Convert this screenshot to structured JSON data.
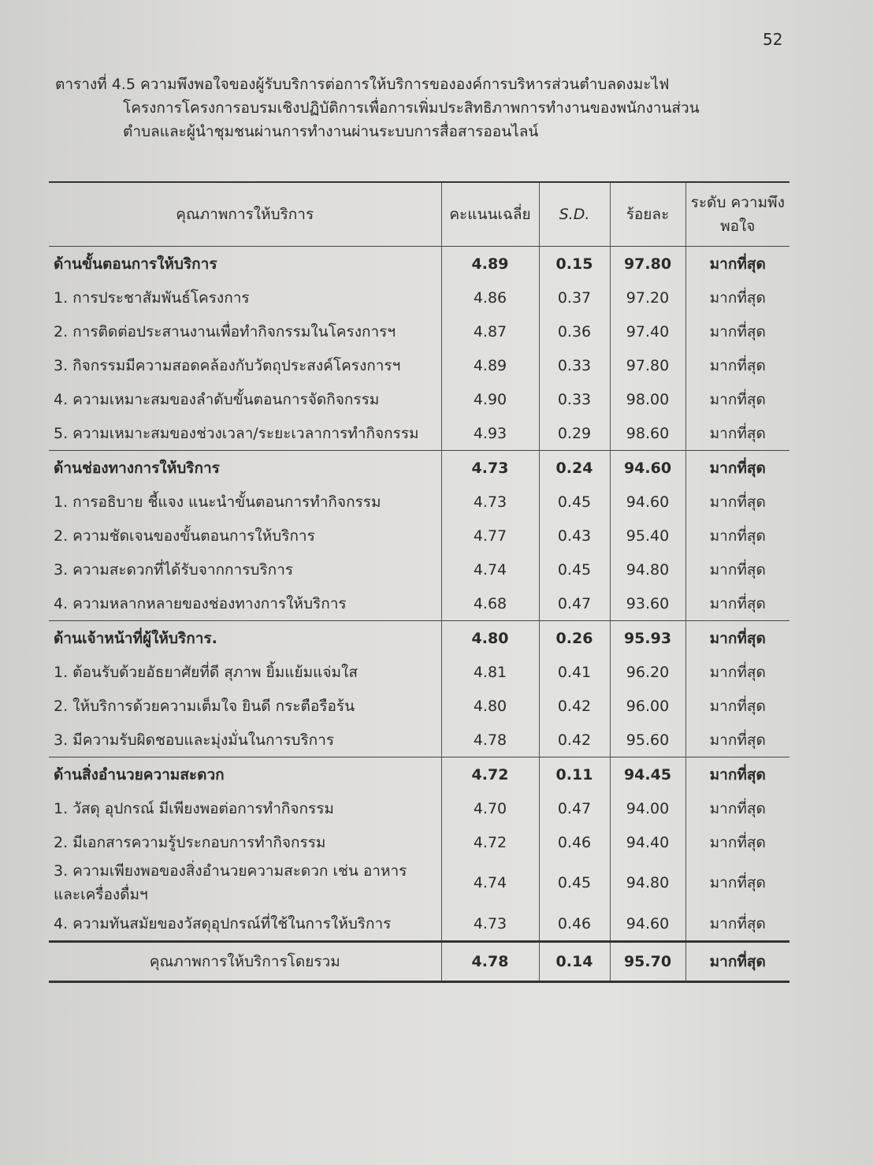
{
  "page_number": "52",
  "caption": {
    "label": "ตารางที่ 4.5",
    "line1": "ความพึงพอใจของผู้รับบริการต่อการให้บริการขององค์การบริหารส่วนตำบลดงมะไฟ",
    "line2": "โครงการโครงการอบรมเชิงปฏิบัติการเพื่อการเพิ่มประสิทธิภาพการทำงานของพนักงานส่วน",
    "line3": "ตำบลและผู้นำชุมชนผ่านการทำงานผ่านระบบการสื่อสารออนไลน์"
  },
  "table": {
    "headers": [
      "คุณภาพการให้บริการ",
      "คะแนนเฉลี่ย",
      "S.D.",
      "ร้อยละ",
      "ระดับ ความพึงพอใจ"
    ],
    "sections": [
      {
        "title": "ด้านขั้นตอนการให้บริการ",
        "mean": "4.89",
        "sd": "0.15",
        "pct": "97.80",
        "level": "มากที่สุด",
        "items": [
          {
            "label": "1. การประชาสัมพันธ์โครงการ",
            "mean": "4.86",
            "sd": "0.37",
            "pct": "97.20",
            "level": "มากที่สุด"
          },
          {
            "label": "2. การติดต่อประสานงานเพื่อทำกิจกรรมในโครงการฯ",
            "mean": "4.87",
            "sd": "0.36",
            "pct": "97.40",
            "level": "มากที่สุด"
          },
          {
            "label": "3. กิจกรรมมีความสอดคล้องกับวัตถุประสงค์โครงการฯ",
            "mean": "4.89",
            "sd": "0.33",
            "pct": "97.80",
            "level": "มากที่สุด"
          },
          {
            "label": "4. ความเหมาะสมของลำดับขั้นตอนการจัดกิจกรรม",
            "mean": "4.90",
            "sd": "0.33",
            "pct": "98.00",
            "level": "มากที่สุด"
          },
          {
            "label": "5. ความเหมาะสมของช่วงเวลา/ระยะเวลาการทำกิจกรรม",
            "mean": "4.93",
            "sd": "0.29",
            "pct": "98.60",
            "level": "มากที่สุด"
          }
        ]
      },
      {
        "title": "ด้านช่องทางการให้บริการ",
        "mean": "4.73",
        "sd": "0.24",
        "pct": "94.60",
        "level": "มากที่สุด",
        "items": [
          {
            "label": "1. การอธิบาย ชี้แจง แนะนำขั้นตอนการทำกิจกรรม",
            "mean": "4.73",
            "sd": "0.45",
            "pct": "94.60",
            "level": "มากที่สุด"
          },
          {
            "label": "2. ความชัดเจนของขั้นตอนการให้บริการ",
            "mean": "4.77",
            "sd": "0.43",
            "pct": "95.40",
            "level": "มากที่สุด"
          },
          {
            "label": "3. ความสะดวกที่ได้รับจากการบริการ",
            "mean": "4.74",
            "sd": "0.45",
            "pct": "94.80",
            "level": "มากที่สุด"
          },
          {
            "label": "4. ความหลากหลายของช่องทางการให้บริการ",
            "mean": "4.68",
            "sd": "0.47",
            "pct": "93.60",
            "level": "มากที่สุด"
          }
        ]
      },
      {
        "title": "ด้านเจ้าหน้าที่ผู้ให้บริการ.",
        "mean": "4.80",
        "sd": "0.26",
        "pct": "95.93",
        "level": "มากที่สุด",
        "items": [
          {
            "label": "1. ต้อนรับด้วยอัธยาศัยที่ดี สุภาพ ยิ้มแย้มแจ่มใส",
            "mean": "4.81",
            "sd": "0.41",
            "pct": "96.20",
            "level": "มากที่สุด"
          },
          {
            "label": "2. ให้บริการด้วยความเต็มใจ ยินดี กระตือรือร้น",
            "mean": "4.80",
            "sd": "0.42",
            "pct": "96.00",
            "level": "มากที่สุด"
          },
          {
            "label": "3. มีความรับผิดชอบและมุ่งมั่นในการบริการ",
            "mean": "4.78",
            "sd": "0.42",
            "pct": "95.60",
            "level": "มากที่สุด"
          }
        ]
      },
      {
        "title": "ด้านสิ่งอำนวยความสะดวก",
        "mean": "4.72",
        "sd": "0.11",
        "pct": "94.45",
        "level": "มากที่สุด",
        "items": [
          {
            "label": "1. วัสดุ อุปกรณ์ มีเพียงพอต่อการทำกิจกรรม",
            "mean": "4.70",
            "sd": "0.47",
            "pct": "94.00",
            "level": "มากที่สุด"
          },
          {
            "label": "2. มีเอกสารความรู้ประกอบการทำกิจกรรม",
            "mean": "4.72",
            "sd": "0.46",
            "pct": "94.40",
            "level": "มากที่สุด"
          },
          {
            "label": "3. ความเพียงพอของสิ่งอำนวยความสะดวก เช่น อาหาร และเครื่องดื่มฯ",
            "mean": "4.74",
            "sd": "0.45",
            "pct": "94.80",
            "level": "มากที่สุด"
          },
          {
            "label": "4. ความทันสมัยของวัสดุอุปกรณ์ที่ใช้ในการให้บริการ",
            "mean": "4.73",
            "sd": "0.46",
            "pct": "94.60",
            "level": "มากที่สุด"
          }
        ]
      }
    ],
    "total": {
      "label": "คุณภาพการให้บริการโดยรวม",
      "mean": "4.78",
      "sd": "0.14",
      "pct": "95.70",
      "level": "มากที่สุด"
    }
  }
}
